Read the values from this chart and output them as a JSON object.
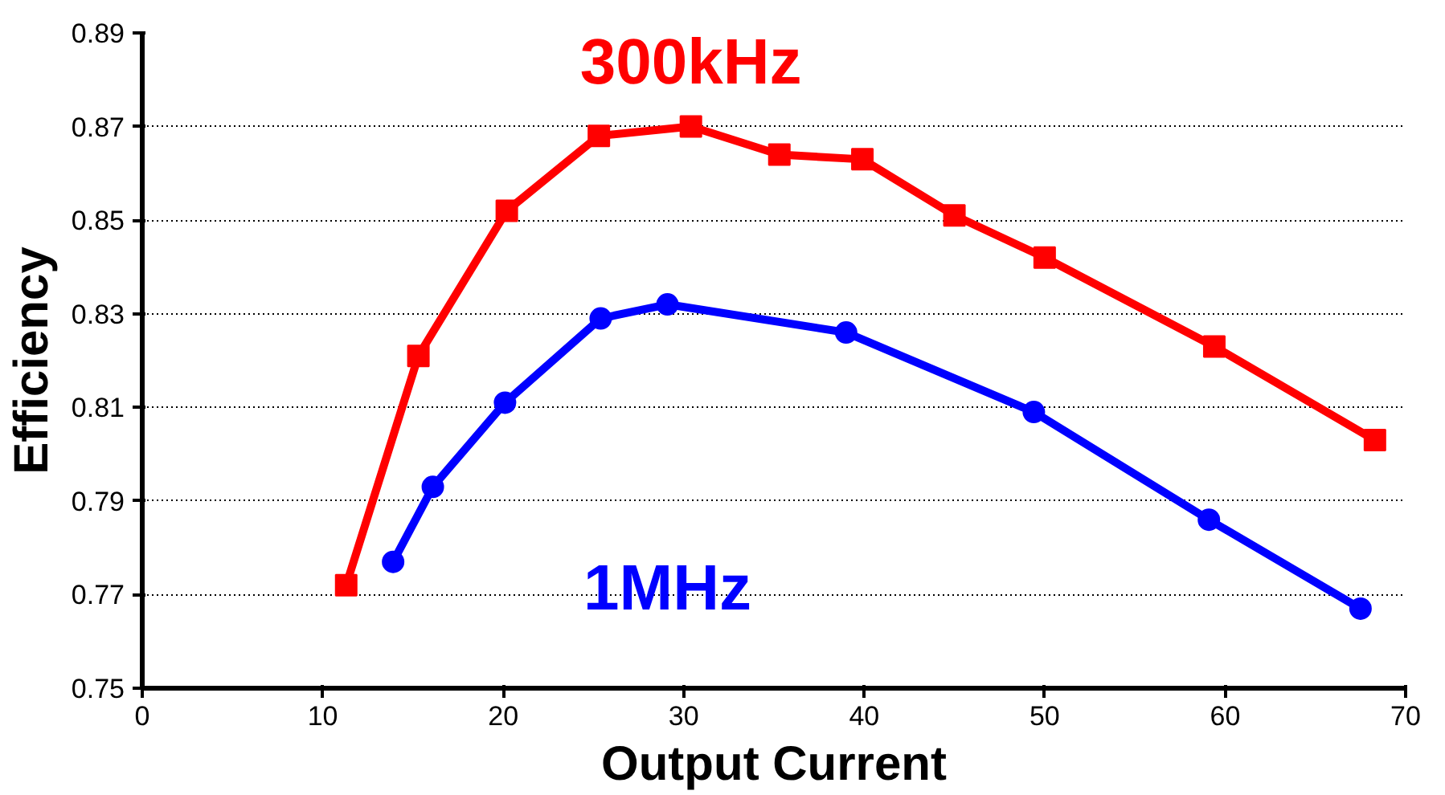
{
  "chart_data": {
    "type": "line",
    "xlabel": "Output Current",
    "ylabel": "Efficiency",
    "xlim": [
      0,
      70
    ],
    "ylim": [
      0.75,
      0.89
    ],
    "xticks": [
      0,
      10,
      20,
      30,
      40,
      50,
      60,
      70
    ],
    "yticks": [
      0.75,
      0.77,
      0.79,
      0.81,
      0.83,
      0.85,
      0.87,
      0.89
    ],
    "grid": "y",
    "series": [
      {
        "name": "300kHz",
        "color": "#ff0000",
        "marker": "square",
        "x": [
          11.3,
          15.3,
          20.2,
          25.3,
          30.4,
          35.3,
          39.9,
          45.0,
          50.0,
          59.4,
          68.3
        ],
        "values": [
          0.772,
          0.821,
          0.852,
          0.868,
          0.87,
          0.864,
          0.863,
          0.851,
          0.842,
          0.823,
          0.803
        ]
      },
      {
        "name": "1MHz",
        "color": "#0000ff",
        "marker": "circle",
        "x": [
          13.9,
          16.1,
          20.1,
          25.4,
          29.1,
          39.0,
          49.4,
          59.1,
          67.5
        ],
        "values": [
          0.777,
          0.793,
          0.811,
          0.829,
          0.832,
          0.826,
          0.809,
          0.786,
          0.767
        ]
      }
    ]
  }
}
